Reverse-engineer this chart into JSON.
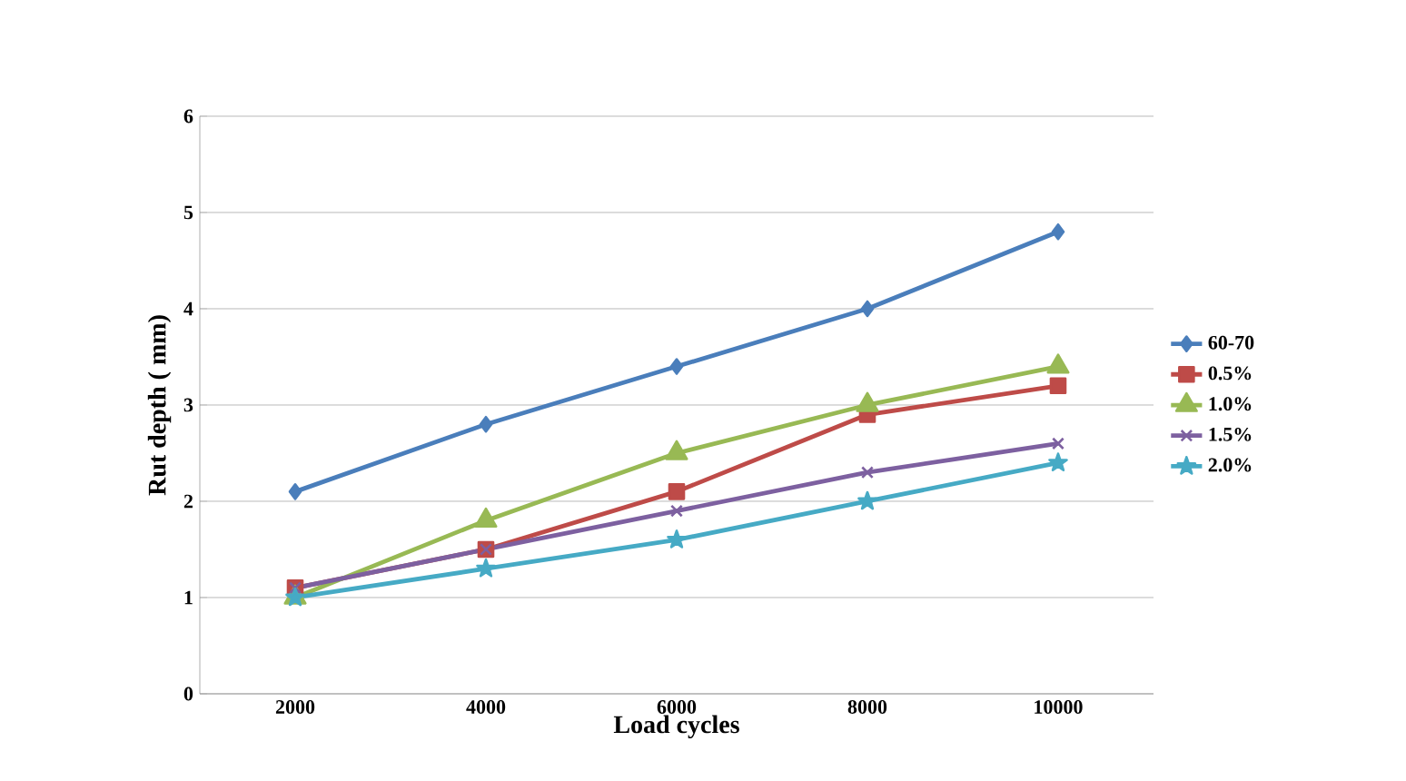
{
  "chart_data": {
    "type": "line",
    "xlabel": "Load cycles",
    "ylabel": "Rut depth ( mm)",
    "categories": [
      "2000",
      "4000",
      "6000",
      "8000",
      "10000"
    ],
    "ylim": [
      0,
      6
    ],
    "yticks": [
      0,
      1,
      2,
      3,
      4,
      5,
      6
    ],
    "grid": "y",
    "legend": "right",
    "series": [
      {
        "name": "60-70",
        "color": "#4a7ebb",
        "marker": "diamond",
        "values": [
          2.1,
          2.8,
          3.4,
          4.0,
          4.8
        ]
      },
      {
        "name": "0.5%",
        "color": "#be4b48",
        "marker": "square",
        "values": [
          1.1,
          1.5,
          2.1,
          2.9,
          3.2
        ]
      },
      {
        "name": "1.0%",
        "color": "#98b954",
        "marker": "triangle",
        "values": [
          1.0,
          1.8,
          2.5,
          3.0,
          3.4
        ]
      },
      {
        "name": "1.5%",
        "color": "#7d60a0",
        "marker": "cross",
        "values": [
          1.1,
          1.5,
          1.9,
          2.3,
          2.6
        ]
      },
      {
        "name": "2.0%",
        "color": "#46aac5",
        "marker": "star",
        "values": [
          1.0,
          1.3,
          1.6,
          2.0,
          2.4
        ]
      }
    ]
  }
}
